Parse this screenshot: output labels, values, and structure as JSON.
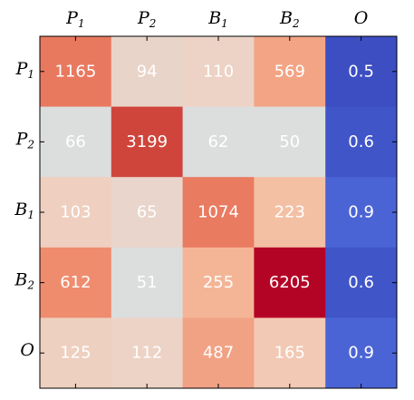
{
  "chart_data": {
    "type": "heatmap",
    "row_labels": [
      {
        "base": "P",
        "sub": "1"
      },
      {
        "base": "P",
        "sub": "2"
      },
      {
        "base": "B",
        "sub": "1"
      },
      {
        "base": "B",
        "sub": "2"
      },
      {
        "base": "O",
        "sub": ""
      }
    ],
    "col_labels": [
      {
        "base": "P",
        "sub": "1"
      },
      {
        "base": "P",
        "sub": "2"
      },
      {
        "base": "B",
        "sub": "1"
      },
      {
        "base": "B",
        "sub": "2"
      },
      {
        "base": "O",
        "sub": ""
      }
    ],
    "values": [
      [
        "1165",
        "94",
        "110",
        "569",
        "0.5"
      ],
      [
        "66",
        "3199",
        "62",
        "50",
        "0.6"
      ],
      [
        "103",
        "65",
        "1074",
        "223",
        "0.9"
      ],
      [
        "612",
        "51",
        "255",
        "6205",
        "0.6"
      ],
      [
        "125",
        "112",
        "487",
        "165",
        "0.9"
      ]
    ],
    "cell_colors": [
      [
        "#e8795f",
        "#e9d4c9",
        "#ecd3c6",
        "#f2a485",
        "#3c4ec2"
      ],
      [
        "#dcdddd",
        "#cf453c",
        "#dcdddd",
        "#dcdddd",
        "#4055c8"
      ],
      [
        "#efcfbf",
        "#e9d5cb",
        "#e97b61",
        "#f3c0a4",
        "#4b64d5"
      ],
      [
        "#ef8c6e",
        "#dcdddd",
        "#f4b596",
        "#b40426",
        "#4055c8"
      ],
      [
        "#eed0c0",
        "#ecd3c5",
        "#f1a284",
        "#f2c9b4",
        "#4b64d5"
      ]
    ],
    "colormap": "coolwarm",
    "grid": false
  }
}
